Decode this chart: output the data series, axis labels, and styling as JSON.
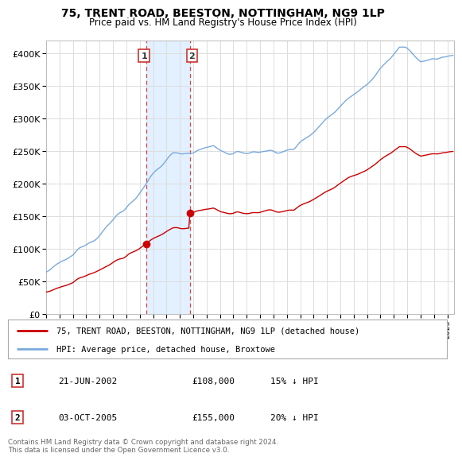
{
  "title": "75, TRENT ROAD, BEESTON, NOTTINGHAM, NG9 1LP",
  "subtitle": "Price paid vs. HM Land Registry's House Price Index (HPI)",
  "ylim": [
    0,
    420000
  ],
  "yticks": [
    0,
    50000,
    100000,
    150000,
    200000,
    250000,
    300000,
    350000,
    400000
  ],
  "xlim": [
    1995,
    2025.5
  ],
  "background_color": "#ffffff",
  "grid_color": "#dddddd",
  "shade_color": "#ddeeff",
  "t1_x": 2002.47,
  "t1_y": 108000,
  "t2_x": 2005.75,
  "t2_y": 155000,
  "legend_line1": "75, TRENT ROAD, BEESTON, NOTTINGHAM, NG9 1LP (detached house)",
  "legend_line2": "HPI: Average price, detached house, Broxtowe",
  "footer": "Contains HM Land Registry data © Crown copyright and database right 2024.\nThis data is licensed under the Open Government Licence v3.0.",
  "table_rows": [
    {
      "num": "1",
      "date": "21-JUN-2002",
      "price": "£108,000",
      "hpi": "15% ↓ HPI"
    },
    {
      "num": "2",
      "date": "03-OCT-2005",
      "price": "£155,000",
      "hpi": "20% ↓ HPI"
    }
  ],
  "hpi_line_color": "#7aaadd",
  "price_line_color": "#cc0000",
  "vline_color": "#dd4444",
  "box_edge_color": "#cc3333"
}
